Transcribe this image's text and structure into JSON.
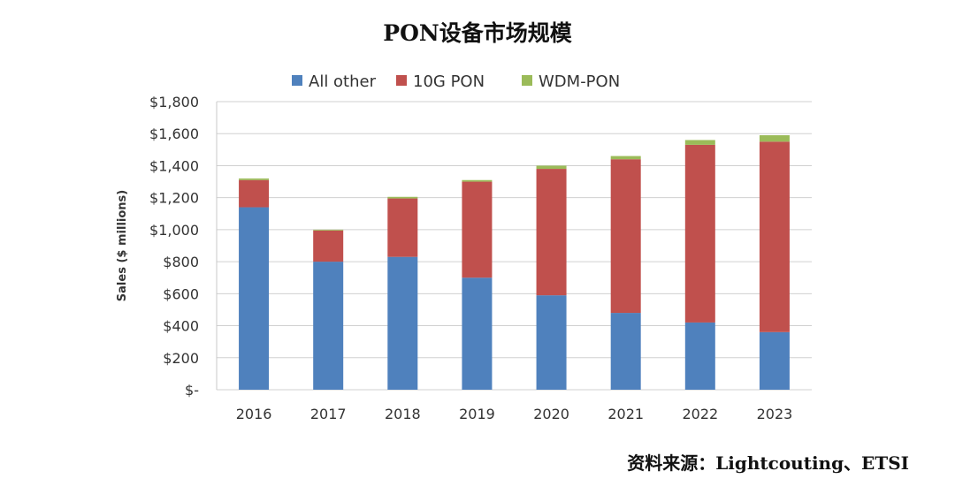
{
  "title": "PON设备市场规模",
  "source": "资料来源：Lightcouting、ETSI",
  "chart_data": {
    "type": "bar",
    "stacked": true,
    "categories": [
      "2016",
      "2017",
      "2018",
      "2019",
      "2020",
      "2021",
      "2022",
      "2023"
    ],
    "series": [
      {
        "name": "All other",
        "color": "#4f81bd",
        "values": [
          1140,
          800,
          830,
          700,
          590,
          480,
          420,
          360
        ]
      },
      {
        "name": "10G PON",
        "color": "#c0504d",
        "values": [
          170,
          195,
          365,
          600,
          790,
          960,
          1110,
          1190
        ]
      },
      {
        "name": "WDM-PON",
        "color": "#9bbb59",
        "values": [
          10,
          5,
          10,
          10,
          20,
          20,
          30,
          40
        ]
      }
    ],
    "ylabel": "Sales ($ millions)",
    "ylim": [
      0,
      1800
    ],
    "yticks": [
      {
        "value": 0,
        "label": "$-"
      },
      {
        "value": 200,
        "label": "$200"
      },
      {
        "value": 400,
        "label": "$400"
      },
      {
        "value": 600,
        "label": "$600"
      },
      {
        "value": 800,
        "label": "$800"
      },
      {
        "value": 1000,
        "label": "$1,000"
      },
      {
        "value": 1200,
        "label": "$1,200"
      },
      {
        "value": 1400,
        "label": "$1,400"
      },
      {
        "value": 1600,
        "label": "$1,600"
      },
      {
        "value": 1800,
        "label": "$1,800"
      }
    ],
    "grid": true,
    "legend_position": "top"
  }
}
